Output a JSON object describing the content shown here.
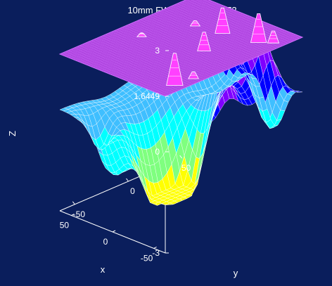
{
  "chart_data": {
    "type": "surface",
    "title": "10mm FWHM, 115, 0.0272",
    "xlabel": "x",
    "ylabel": "y",
    "zlabel": "Z",
    "xlim": [
      -64,
      64
    ],
    "ylim": [
      -64,
      64
    ],
    "zlim": [
      -3,
      3
    ],
    "x_ticks": [
      "-50",
      "0",
      "50"
    ],
    "y_ticks": [
      "-50",
      "0",
      "50"
    ],
    "z_ticks": [
      "-3",
      "0",
      "1.6449",
      "3"
    ],
    "threshold_plane": {
      "z": 1.6449,
      "color": "#b044e0"
    },
    "colormap": [
      "#ffff00",
      "#7fff7f",
      "#00ffff",
      "#3fbfff",
      "#0000ff",
      "#7f00ff",
      "#ff00ff",
      "#ffffff"
    ],
    "background": "#0a1e5c",
    "grid": false,
    "peaks_above_threshold": [
      {
        "x": -52,
        "y": -46,
        "z": 2.6
      },
      {
        "x": -54,
        "y": -30,
        "z": 1.85
      },
      {
        "x": -20,
        "y": 6,
        "z": 2.2
      },
      {
        "x": -42,
        "y": 40,
        "z": 2.5
      },
      {
        "x": -52,
        "y": 46,
        "z": 2.0
      },
      {
        "x": -6,
        "y": 34,
        "z": 2.4
      },
      {
        "x": 22,
        "y": 30,
        "z": 1.8
      },
      {
        "x": 40,
        "y": -6,
        "z": 1.75
      }
    ]
  }
}
